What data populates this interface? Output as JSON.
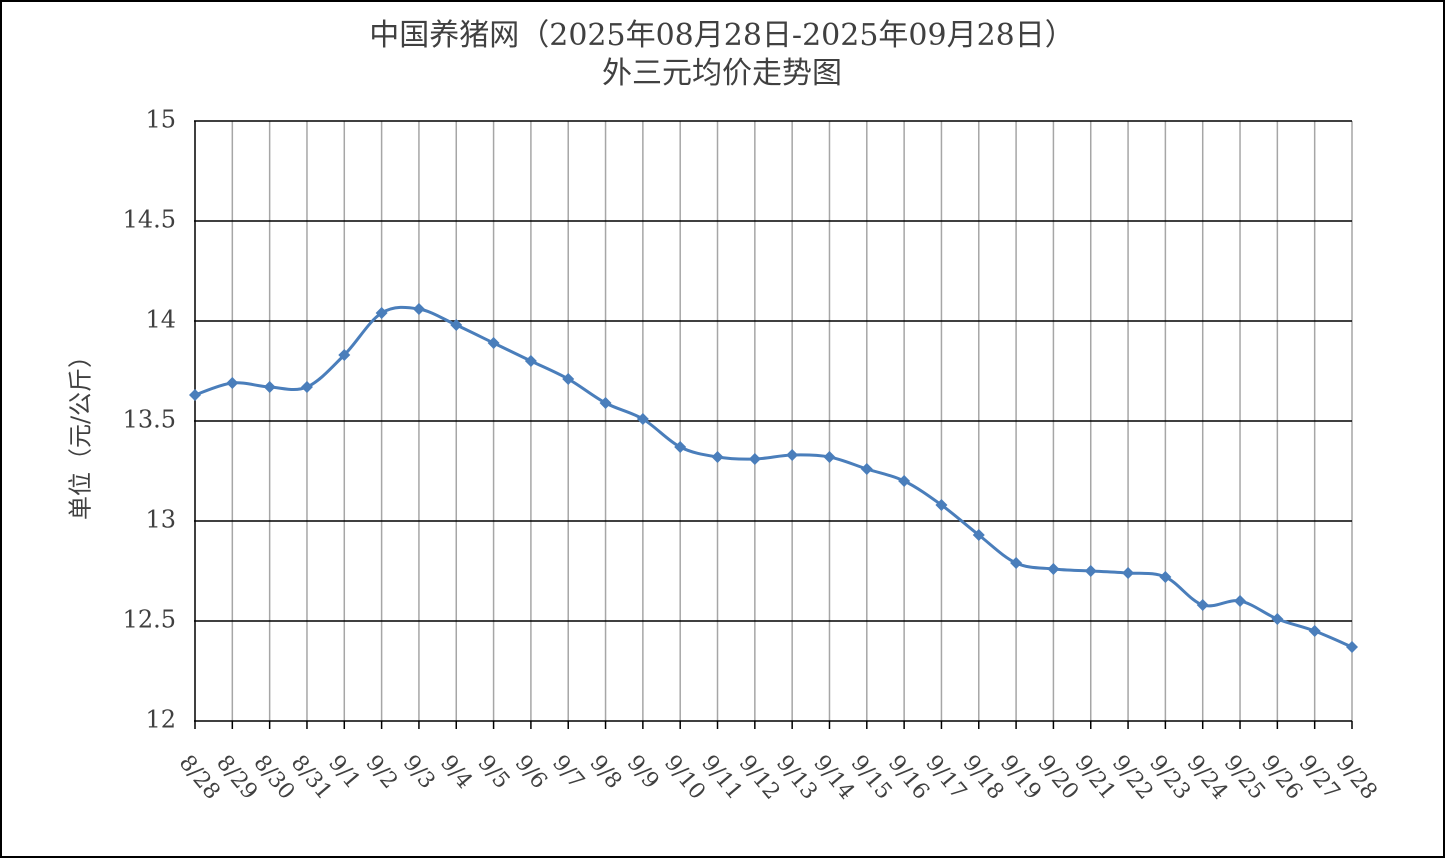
{
  "chart_data": {
    "type": "line",
    "title": "中国养猪网（2025年08月28日-2025年09月28日）",
    "subtitle": "外三元均价走势图",
    "y_label": "单位（元/公斤）",
    "categories": [
      "8/28",
      "8/29",
      "8/30",
      "8/31",
      "9/1",
      "9/2",
      "9/3",
      "9/4",
      "9/5",
      "9/6",
      "9/7",
      "9/8",
      "9/9",
      "9/10",
      "9/11",
      "9/12",
      "9/13",
      "9/14",
      "9/15",
      "9/16",
      "9/17",
      "9/18",
      "9/19",
      "9/20",
      "9/21",
      "9/22",
      "9/23",
      "9/24",
      "9/25",
      "9/26",
      "9/27",
      "9/28"
    ],
    "series": [
      {
        "name": "外三元均价",
        "color": "#4a7ebb",
        "values": [
          13.63,
          13.69,
          13.67,
          13.67,
          13.83,
          14.04,
          14.06,
          13.98,
          13.89,
          13.8,
          13.71,
          13.59,
          13.51,
          13.37,
          13.32,
          13.31,
          13.33,
          13.32,
          13.26,
          13.2,
          13.08,
          12.93,
          12.79,
          12.76,
          12.75,
          12.74,
          12.72,
          12.58,
          12.6,
          12.51,
          12.45,
          12.37
        ]
      }
    ],
    "ylim": [
      12,
      15
    ],
    "yticks": [
      12,
      12.5,
      13,
      13.5,
      14,
      14.5,
      15
    ],
    "grid": true
  }
}
